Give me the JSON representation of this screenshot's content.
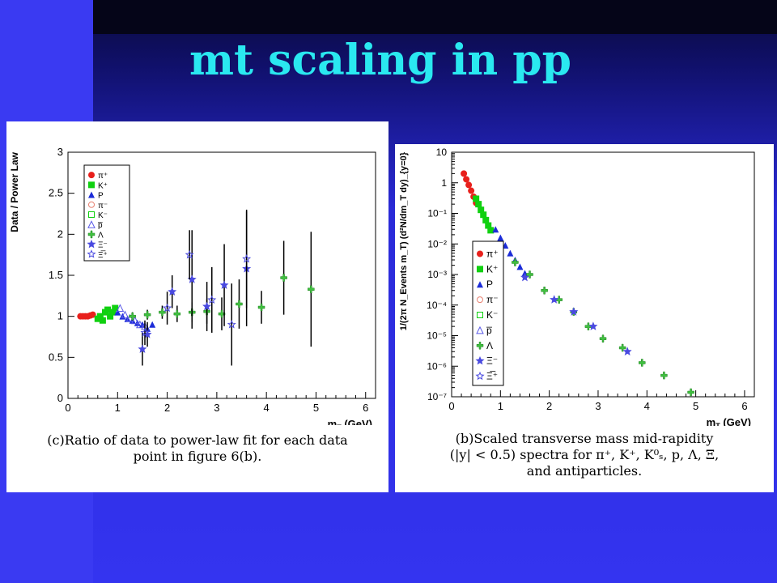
{
  "slide": {
    "title": "mt scaling in pp"
  },
  "left_panel": {
    "caption_lines": [
      "(c)Ratio of data to power-law fit for each data",
      "point in figure 6(b)."
    ]
  },
  "right_panel": {
    "caption_lines": [
      "(b)Scaled transverse mass mid-rapidity",
      "(|y| < 0.5) spectra for π⁺, K⁺, K⁰ₛ, p, Λ, Ξ,",
      "and antiparticles."
    ]
  },
  "colors": {
    "pi_plus": "#e8201c",
    "k_plus": "#10d010",
    "p": "#1c2cd8",
    "antiproton": "#5a5ae8",
    "lambda": "#40c040",
    "xi": "#4a4ae0"
  },
  "chart_data": [
    {
      "type": "scatter",
      "xlabel": "m_T (GeV)",
      "ylabel": "Data / Power Law",
      "xlim": [
        0,
        6.2
      ],
      "ylim": [
        0,
        3
      ],
      "x_ticks": [
        "0",
        "1",
        "2",
        "3",
        "4",
        "5",
        "6"
      ],
      "y_ticks": [
        "0",
        "0.5",
        "1",
        "1.5",
        "2",
        "2.5",
        "3"
      ],
      "legend_position": "top-left",
      "legend": [
        "π⁺",
        "K⁺",
        "P",
        "π⁻",
        "K⁻",
        "p̅",
        "Λ",
        "Ξ⁻",
        "Ξ̅⁺"
      ],
      "series": [
        {
          "name": "π⁺",
          "marker": "circle",
          "color": "#e8201c",
          "x": [
            0.25,
            0.3,
            0.35,
            0.4,
            0.45,
            0.5
          ],
          "y": [
            1.0,
            1.0,
            1.0,
            1.0,
            1.01,
            1.02
          ]
        },
        {
          "name": "K⁺",
          "marker": "square",
          "color": "#10d010",
          "x": [
            0.6,
            0.65,
            0.7,
            0.75,
            0.8,
            0.85,
            0.9,
            0.95
          ],
          "y": [
            0.97,
            1.0,
            0.95,
            1.05,
            1.08,
            1.0,
            1.05,
            1.1
          ]
        },
        {
          "name": "P",
          "marker": "triangle",
          "color": "#1c2cd8",
          "x": [
            1.0,
            1.1,
            1.2,
            1.3,
            1.4,
            1.5,
            1.6,
            1.7
          ],
          "y": [
            1.05,
            1.0,
            0.97,
            0.95,
            0.92,
            0.9,
            0.85,
            0.9
          ]
        },
        {
          "name": "p̅",
          "marker": "triangle-open",
          "color": "#5a5ae8",
          "x": [
            1.05,
            1.15,
            1.25,
            1.35,
            1.45,
            1.55
          ],
          "y": [
            1.1,
            1.02,
            0.98,
            0.95,
            0.9,
            0.88
          ]
        },
        {
          "name": "Λ",
          "marker": "cross",
          "color": "#40c040",
          "x": [
            1.3,
            1.6,
            1.9,
            2.2,
            2.5,
            2.8,
            3.1,
            3.45,
            3.9,
            4.35,
            4.9
          ],
          "y": [
            1.0,
            1.02,
            1.05,
            1.03,
            1.05,
            1.06,
            1.03,
            1.15,
            1.11,
            1.47,
            1.33
          ],
          "err": [
            0.05,
            0.06,
            0.08,
            0.1,
            0.12,
            0.15,
            0.2,
            0.3,
            0.2,
            0.45,
            0.7
          ]
        },
        {
          "name": "Ξ⁻",
          "marker": "star",
          "color": "#4a4ae0",
          "x": [
            1.5,
            1.6,
            2.1,
            2.5,
            2.8,
            3.15,
            3.6
          ],
          "y": [
            0.6,
            0.78,
            1.3,
            1.45,
            1.12,
            1.38,
            1.58
          ],
          "err": [
            0.2,
            0.15,
            0.2,
            0.6,
            0.3,
            0.5,
            0.7
          ]
        },
        {
          "name": "Ξ̅⁺",
          "marker": "star-open",
          "color": "#4a4ae0",
          "x": [
            1.55,
            2.0,
            2.45,
            2.9,
            3.3,
            3.6
          ],
          "y": [
            0.8,
            1.1,
            1.75,
            1.2,
            0.9,
            1.7
          ],
          "err": [
            0.15,
            0.2,
            0.3,
            0.4,
            0.5,
            0.6
          ]
        }
      ]
    },
    {
      "type": "scatter",
      "xlabel": "m_T (GeV)",
      "ylabel": "1/(2π N_Events m_T) (d²N/dm_T dy)_{y=0}",
      "xlim": [
        0,
        6.2
      ],
      "ylim": [
        1e-07,
        10
      ],
      "log_y": true,
      "x_ticks": [
        "0",
        "1",
        "2",
        "3",
        "4",
        "5",
        "6"
      ],
      "y_ticks": [
        "10",
        "1",
        "10⁻¹",
        "10⁻²",
        "10⁻³",
        "10⁻⁴",
        "10⁻⁵",
        "10⁻⁶",
        "10⁻⁷"
      ],
      "legend_position": "bottom-left",
      "legend": [
        "π⁺",
        "K⁺",
        "P",
        "π⁻",
        "K⁻",
        "p̅",
        "Λ",
        "Ξ⁻",
        "Ξ̅⁺"
      ],
      "series": [
        {
          "name": "π⁺",
          "marker": "circle",
          "color": "#e8201c",
          "x": [
            0.25,
            0.3,
            0.35,
            0.4,
            0.45,
            0.5
          ],
          "y": [
            2.0,
            1.3,
            0.85,
            0.55,
            0.35,
            0.22
          ]
        },
        {
          "name": "K⁺",
          "marker": "square",
          "color": "#10d010",
          "x": [
            0.5,
            0.55,
            0.6,
            0.65,
            0.7,
            0.75,
            0.8
          ],
          "y": [
            0.3,
            0.2,
            0.13,
            0.09,
            0.06,
            0.04,
            0.028
          ]
        },
        {
          "name": "P",
          "marker": "triangle",
          "color": "#1c2cd8",
          "x": [
            0.9,
            1.0,
            1.1,
            1.2,
            1.3,
            1.4,
            1.5
          ],
          "y": [
            0.03,
            0.016,
            0.009,
            0.005,
            0.003,
            0.0018,
            0.0011
          ]
        },
        {
          "name": "Λ",
          "marker": "cross",
          "color": "#40c040",
          "x": [
            1.3,
            1.6,
            1.9,
            2.2,
            2.5,
            2.8,
            3.1,
            3.5,
            3.9,
            4.35,
            4.9
          ],
          "y": [
            0.0025,
            0.001,
            0.0003,
            0.00015,
            6e-05,
            2e-05,
            8e-06,
            4e-06,
            1.3e-06,
            5e-07,
            1.4e-07
          ]
        },
        {
          "name": "Ξ⁻",
          "marker": "star",
          "color": "#4a4ae0",
          "x": [
            1.5,
            2.1,
            2.5,
            2.9,
            3.6
          ],
          "y": [
            0.0008,
            0.00015,
            6e-05,
            2e-05,
            3e-06
          ]
        }
      ]
    }
  ]
}
